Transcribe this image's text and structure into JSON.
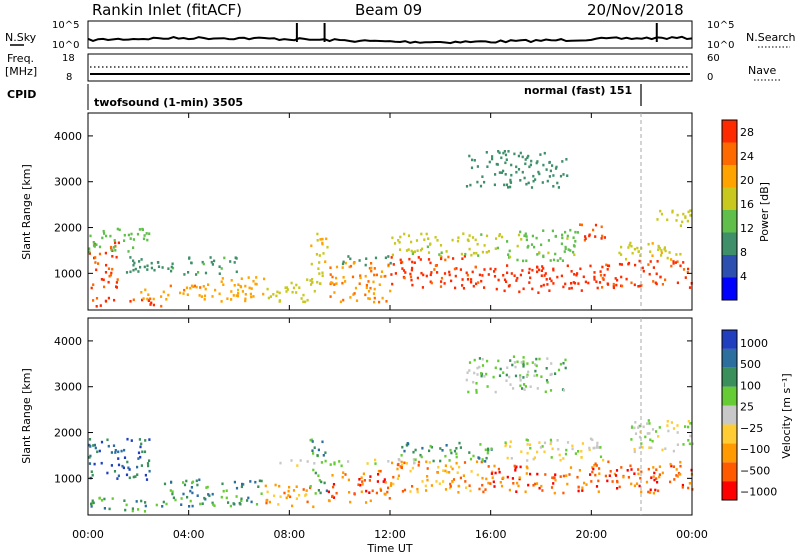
{
  "header": {
    "station": "Rankin Inlet (fitACF)",
    "beam": "Beam 09",
    "date": "20/Nov/2018"
  },
  "noise_panel": {
    "left_label": "N.Sky",
    "right_label": "N.Search",
    "left_ticks": [
      "10^5",
      "10^0"
    ],
    "right_ticks": [
      "10^5",
      "10^0"
    ]
  },
  "freq_panel": {
    "left_label_1": "Freq.",
    "left_label_2": "[MHz]",
    "right_label": "Nave",
    "left_ticks": [
      "18",
      "8"
    ],
    "right_ticks": [
      "60",
      "0"
    ]
  },
  "cpid": {
    "label": "CPID",
    "modes": [
      {
        "name": "twofsound (1-min) 3505",
        "start_hour": 0.0
      },
      {
        "name": "normal (fast) 151",
        "start_hour": 21.9
      }
    ]
  },
  "time_axis": {
    "title": "Time UT",
    "ticks": [
      "00:00",
      "04:00",
      "08:00",
      "12:00",
      "16:00",
      "20:00",
      "00:00"
    ]
  },
  "colors": {
    "power": [
      "#0000ff",
      "#2c4fb0",
      "#3e8f6a",
      "#5fbf4a",
      "#c8c81e",
      "#ffa300",
      "#ff6a00",
      "#ff2b00"
    ],
    "velocity": [
      "#ff0000",
      "#ff5a00",
      "#ff9a00",
      "#ffcc33",
      "#c8c8c8",
      "#66cc33",
      "#3a8f5a",
      "#2c6f9f",
      "#1f3fbf"
    ]
  },
  "chart_data": [
    {
      "type": "heatmap",
      "panel": "power",
      "ylabel": "Slant Range [km]",
      "yticks": [
        1000,
        2000,
        3000,
        4000
      ],
      "ylim": [
        200,
        4500
      ],
      "xlim": [
        0,
        24
      ],
      "colorbar_label": "Power [dB]",
      "colorbar_ticks": [
        "4",
        "8",
        "12",
        "16",
        "20",
        "24",
        "28"
      ],
      "colorbar_range": [
        0,
        30
      ],
      "regions": [
        {
          "t": [
            0.0,
            1.2
          ],
          "r": [
            700,
            1700
          ],
          "v": 27
        },
        {
          "t": [
            0.0,
            2.5
          ],
          "r": [
            1500,
            2000
          ],
          "v": 13
        },
        {
          "t": [
            0.0,
            3.0
          ],
          "r": [
            300,
            500
          ],
          "v": 26
        },
        {
          "t": [
            2.0,
            4.5
          ],
          "r": [
            450,
            800
          ],
          "v": 22
        },
        {
          "t": [
            4.5,
            7.0
          ],
          "r": [
            400,
            1000
          ],
          "v": 20
        },
        {
          "t": [
            7.0,
            9.0
          ],
          "r": [
            400,
            900
          ],
          "v": 17
        },
        {
          "t": [
            1.5,
            6.0
          ],
          "r": [
            1000,
            1400
          ],
          "v": 10
        },
        {
          "t": [
            8.8,
            9.5
          ],
          "r": [
            800,
            2000
          ],
          "v": 18
        },
        {
          "t": [
            9.5,
            12.0
          ],
          "r": [
            400,
            1300
          ],
          "v": 22
        },
        {
          "t": [
            10.0,
            12.0
          ],
          "r": [
            1200,
            1400
          ],
          "v": 10
        },
        {
          "t": [
            12.0,
            16.0
          ],
          "r": [
            700,
            1400
          ],
          "v": 27
        },
        {
          "t": [
            12.0,
            16.5
          ],
          "r": [
            1400,
            1900
          ],
          "v": 16
        },
        {
          "t": [
            16.0,
            20.0
          ],
          "r": [
            600,
            1200
          ],
          "v": 28
        },
        {
          "t": [
            16.5,
            19.5
          ],
          "r": [
            1300,
            2000
          ],
          "v": 14
        },
        {
          "t": [
            20.0,
            24.0
          ],
          "r": [
            700,
            1300
          ],
          "v": 27
        },
        {
          "t": [
            21.0,
            24.0
          ],
          "r": [
            1300,
            1700
          ],
          "v": 18
        },
        {
          "t": [
            19.5,
            20.5
          ],
          "r": [
            1700,
            2200
          ],
          "v": 26
        },
        {
          "t": [
            22.5,
            24.0
          ],
          "r": [
            2000,
            2400
          ],
          "v": 17
        },
        {
          "t": [
            15.0,
            19.0
          ],
          "r": [
            2900,
            3700
          ],
          "v": 9
        }
      ]
    },
    {
      "type": "heatmap",
      "panel": "velocity",
      "ylabel": "Slant Range [km]",
      "yticks": [
        1000,
        2000,
        3000,
        4000
      ],
      "ylim": [
        200,
        4500
      ],
      "xlim": [
        0,
        24
      ],
      "colorbar_label": "Velocity [m s⁻¹]",
      "colorbar_ticks": [
        "1000",
        "500",
        "100",
        "25",
        "−25",
        "−100",
        "−500",
        "−1000"
      ],
      "regions": [
        {
          "t": [
            0.0,
            2.5
          ],
          "r": [
            1000,
            1900
          ],
          "v": 7
        },
        {
          "t": [
            0.0,
            3.0
          ],
          "r": [
            300,
            600
          ],
          "v": 6
        },
        {
          "t": [
            3.0,
            7.0
          ],
          "r": [
            400,
            1000
          ],
          "v": 6
        },
        {
          "t": [
            7.0,
            9.0
          ],
          "r": [
            400,
            900
          ],
          "v": 2
        },
        {
          "t": [
            8.8,
            9.5
          ],
          "r": [
            700,
            1900
          ],
          "v": 6
        },
        {
          "t": [
            9.5,
            12.0
          ],
          "r": [
            500,
            1200
          ],
          "v": 1
        },
        {
          "t": [
            7.5,
            13.0
          ],
          "r": [
            1300,
            1450
          ],
          "v": 4
        },
        {
          "t": [
            12.0,
            16.0
          ],
          "r": [
            700,
            1400
          ],
          "v": 2
        },
        {
          "t": [
            12.0,
            16.0
          ],
          "r": [
            1400,
            1800
          ],
          "v": 6
        },
        {
          "t": [
            16.0,
            20.0
          ],
          "r": [
            700,
            1300
          ],
          "v": 1
        },
        {
          "t": [
            16.5,
            20.5
          ],
          "r": [
            1400,
            1900
          ],
          "v": 4
        },
        {
          "t": [
            20.0,
            24.0
          ],
          "r": [
            700,
            1400
          ],
          "v": 1
        },
        {
          "t": [
            21.5,
            24.0
          ],
          "r": [
            1600,
            2300
          ],
          "v": 4
        },
        {
          "t": [
            15.0,
            19.0
          ],
          "r": [
            2900,
            3700
          ],
          "v": 5
        }
      ]
    }
  ]
}
